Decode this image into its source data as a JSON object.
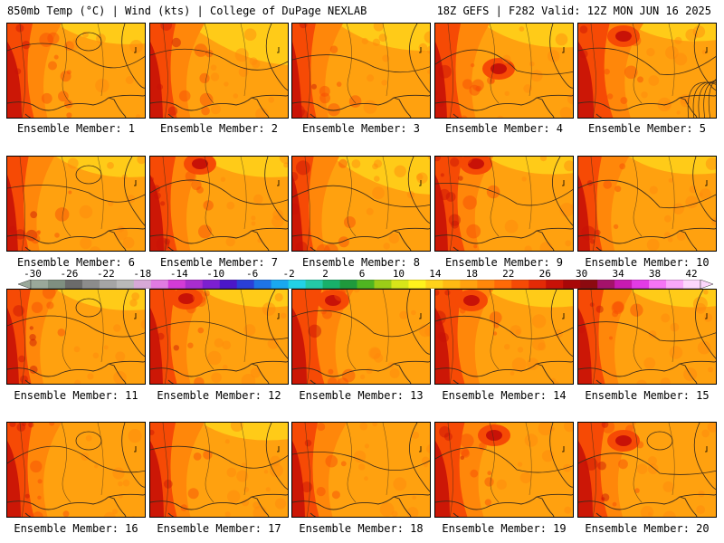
{
  "header": {
    "left_title": "850mb Temp (°C) | Wind (kts) | College of DuPage NEXLAB",
    "right_title": "18Z GEFS | F282 Valid: 12Z MON JUN 16 2025"
  },
  "panels": [
    {
      "caption": "Ensemble Member: 1"
    },
    {
      "caption": "Ensemble Member: 2"
    },
    {
      "caption": "Ensemble Member: 3"
    },
    {
      "caption": "Ensemble Member: 4"
    },
    {
      "caption": "Ensemble Member: 5"
    },
    {
      "caption": "Ensemble Member: 6"
    },
    {
      "caption": "Ensemble Member: 7"
    },
    {
      "caption": "Ensemble Member: 8"
    },
    {
      "caption": "Ensemble Member: 9"
    },
    {
      "caption": "Ensemble Member: 10"
    },
    {
      "caption": "Ensemble Member: 11"
    },
    {
      "caption": "Ensemble Member: 12"
    },
    {
      "caption": "Ensemble Member: 13"
    },
    {
      "caption": "Ensemble Member: 14"
    },
    {
      "caption": "Ensemble Member: 15"
    },
    {
      "caption": "Ensemble Member: 16"
    },
    {
      "caption": "Ensemble Member: 17"
    },
    {
      "caption": "Ensemble Member: 18"
    },
    {
      "caption": "Ensemble Member: 19"
    },
    {
      "caption": "Ensemble Member: 20"
    }
  ],
  "colorbar": {
    "labels": [
      "-30",
      "-26",
      "-22",
      "-18",
      "-14",
      "-10",
      "-6",
      "-2",
      "2",
      "6",
      "10",
      "14",
      "18",
      "22",
      "26",
      "30",
      "34",
      "38",
      "42"
    ],
    "colors": [
      "#9aa89a",
      "#7f8f80",
      "#6b6b6b",
      "#8c8c8c",
      "#a5a5a5",
      "#b9b9b9",
      "#d7a9d7",
      "#e17be1",
      "#d33bd6",
      "#a92dce",
      "#7c1fd0",
      "#4b17c8",
      "#2a3fd8",
      "#1e74e6",
      "#19a8f0",
      "#22d2e6",
      "#24c9a6",
      "#18b06a",
      "#1f9a3c",
      "#4fb521",
      "#9ccc17",
      "#d8e419",
      "#fff21c",
      "#ffd21a",
      "#ffba13",
      "#ffa10f",
      "#ff870a",
      "#ff6a07",
      "#f64a05",
      "#e42a06",
      "#c81207",
      "#a80708",
      "#8c0a10",
      "#a4126a",
      "#c81ab1",
      "#e23be5",
      "#f574f5",
      "#f9a8f9",
      "#fcd7fc"
    ],
    "regions": {
      "hot": "#c81207",
      "warm": "#f64a05",
      "mild": "#ff870a",
      "base": "#ffa10f",
      "cool": "#ffd21a"
    }
  }
}
